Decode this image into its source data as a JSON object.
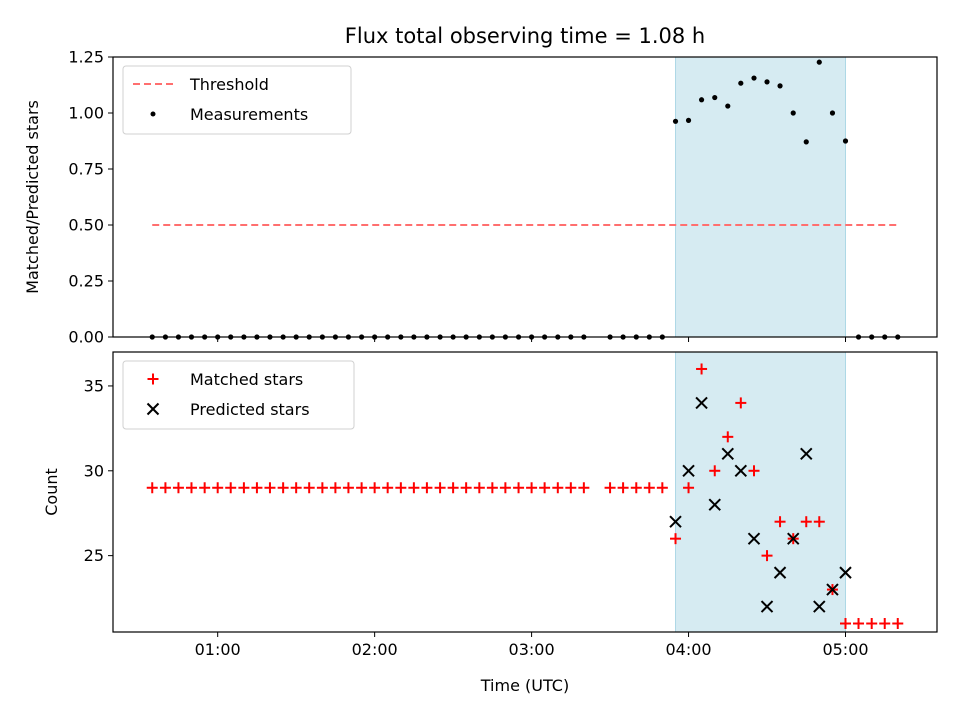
{
  "chart_data": [
    {
      "type": "scatter",
      "title": "Flux total observing time = 1.08 h",
      "ylabel": "Matched/Predicted stars",
      "ylim": [
        0,
        1.25
      ],
      "yticks": [
        "0.00",
        "0.25",
        "0.50",
        "0.75",
        "1.00",
        "1.25"
      ],
      "ytick_values": [
        0,
        0.25,
        0.5,
        0.75,
        1.0,
        1.25
      ],
      "xlim": [
        0.333,
        5.583
      ],
      "xticks_values": [
        1,
        2,
        3,
        4,
        5
      ],
      "highlight_span": [
        3.917,
        5.0
      ],
      "highlight_color": "#add8e6",
      "legend": {
        "placement": "upper-left",
        "entries": [
          {
            "label": "Threshold",
            "style": "dashed-line",
            "color": "#ff6f6f"
          },
          {
            "label": "Measurements",
            "style": "dot",
            "color": "#000000"
          }
        ]
      },
      "series": [
        {
          "name": "Threshold",
          "kind": "line",
          "color": "#ff6f6f",
          "x": [
            0.583,
            5.333
          ],
          "values": [
            0.5,
            0.5
          ]
        },
        {
          "name": "Measurements",
          "kind": "scatter",
          "color": "#000000",
          "x": [
            0.583,
            0.667,
            0.75,
            0.833,
            0.917,
            1.0,
            1.083,
            1.167,
            1.25,
            1.333,
            1.417,
            1.5,
            1.583,
            1.667,
            1.75,
            1.833,
            1.917,
            2.0,
            2.083,
            2.167,
            2.25,
            2.333,
            2.417,
            2.5,
            2.583,
            2.667,
            2.75,
            2.833,
            2.917,
            3.0,
            3.083,
            3.167,
            3.25,
            3.333,
            3.5,
            3.583,
            3.667,
            3.75,
            3.833,
            3.917,
            4.0,
            4.083,
            4.167,
            4.25,
            4.333,
            4.417,
            4.5,
            4.583,
            4.667,
            4.75,
            4.833,
            4.917,
            5.0,
            5.083,
            5.167,
            5.25,
            5.333
          ],
          "values": [
            0,
            0,
            0,
            0,
            0,
            0,
            0,
            0,
            0,
            0,
            0,
            0,
            0,
            0,
            0,
            0,
            0,
            0,
            0,
            0,
            0,
            0,
            0,
            0,
            0,
            0,
            0,
            0,
            0,
            0,
            0,
            0,
            0,
            0,
            0,
            0,
            0,
            0,
            0,
            0.963,
            0.967,
            1.059,
            1.069,
            1.031,
            1.133,
            1.156,
            1.139,
            1.121,
            1.0,
            0.871,
            1.227,
            1.0,
            0.875,
            0,
            0,
            0,
            0
          ]
        }
      ]
    },
    {
      "type": "scatter",
      "xlabel": "Time (UTC)",
      "ylabel": "Count",
      "ylim": [
        20.5,
        37.0
      ],
      "yticks": [
        "25",
        "30",
        "35"
      ],
      "ytick_values": [
        25,
        30,
        35
      ],
      "xlim": [
        0.333,
        5.583
      ],
      "xticks": [
        "01:00",
        "02:00",
        "03:00",
        "04:00",
        "05:00"
      ],
      "xticks_values": [
        1,
        2,
        3,
        4,
        5
      ],
      "highlight_span": [
        3.917,
        5.0
      ],
      "highlight_color": "#add8e6",
      "legend": {
        "placement": "upper-left",
        "entries": [
          {
            "label": "Matched stars",
            "style": "plus",
            "color": "#ff0000"
          },
          {
            "label": "Predicted stars",
            "style": "x",
            "color": "#000000"
          }
        ]
      },
      "series": [
        {
          "name": "Matched stars",
          "kind": "plus",
          "color": "#ff0000",
          "x": [
            0.583,
            0.667,
            0.75,
            0.833,
            0.917,
            1.0,
            1.083,
            1.167,
            1.25,
            1.333,
            1.417,
            1.5,
            1.583,
            1.667,
            1.75,
            1.833,
            1.917,
            2.0,
            2.083,
            2.167,
            2.25,
            2.333,
            2.417,
            2.5,
            2.583,
            2.667,
            2.75,
            2.833,
            2.917,
            3.0,
            3.083,
            3.167,
            3.25,
            3.333,
            3.5,
            3.583,
            3.667,
            3.75,
            3.833,
            3.917,
            4.0,
            4.083,
            4.167,
            4.25,
            4.333,
            4.417,
            4.5,
            4.583,
            4.667,
            4.75,
            4.833,
            4.917,
            5.0,
            5.083,
            5.167,
            5.25,
            5.333
          ],
          "values": [
            29,
            29,
            29,
            29,
            29,
            29,
            29,
            29,
            29,
            29,
            29,
            29,
            29,
            29,
            29,
            29,
            29,
            29,
            29,
            29,
            29,
            29,
            29,
            29,
            29,
            29,
            29,
            29,
            29,
            29,
            29,
            29,
            29,
            29,
            29,
            29,
            29,
            29,
            29,
            26,
            29,
            36,
            30,
            32,
            34,
            30,
            25,
            27,
            26,
            27,
            27,
            23,
            21,
            21,
            21,
            21,
            21
          ]
        },
        {
          "name": "Predicted stars",
          "kind": "x",
          "color": "#000000",
          "x": [
            3.917,
            4.0,
            4.083,
            4.167,
            4.25,
            4.333,
            4.417,
            4.5,
            4.583,
            4.667,
            4.75,
            4.833,
            4.917,
            5.0
          ],
          "values": [
            27,
            30,
            34,
            28,
            31,
            30,
            26,
            22,
            24,
            26,
            31,
            22,
            23,
            24
          ]
        }
      ]
    }
  ]
}
